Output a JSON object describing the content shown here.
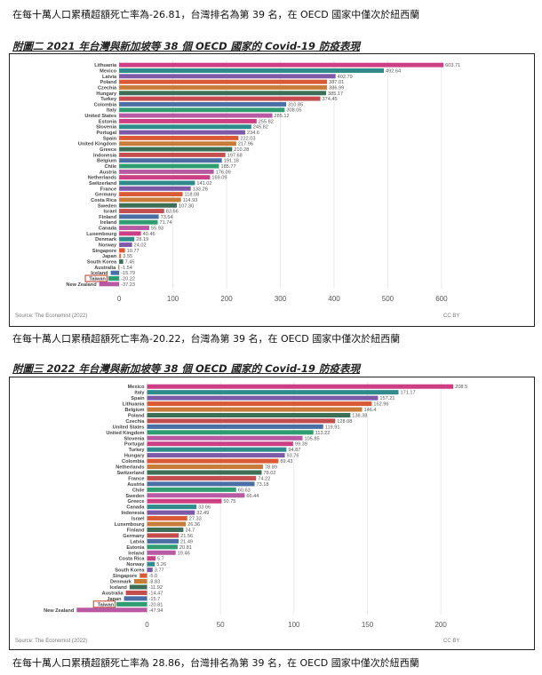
{
  "text": {
    "top_line": "在每十萬人口累積超額死亡率為-26.81，台灣排名為第 39 名，在 OECD 國家中僅次於紐西蘭",
    "caption1": "附圖二 2021 年台灣與新加坡等 38 個 OECD 國家的 Covid-19 防疫表現",
    "after1": "在每十萬人口累積超額死亡率為-20.22，台灣為第 39 名，在 OECD 國家中僅次於紐西蘭",
    "caption2": "附圖三 2022 年台灣與新加坡等 38 個 OECD 國家的 Covid-19 防疫表現",
    "after2": "在每十萬人口累積超額死亡率為 28.86，台灣排名為第 39 名，在 OECD 國家中僅次於紐西蘭"
  },
  "chart_data": [
    {
      "type": "bar",
      "orientation": "horizontal",
      "source": "Source: The Economist (2022)",
      "license": "CC BY",
      "xticks": [
        0,
        100,
        200,
        300,
        400,
        500,
        600
      ],
      "xlim": [
        -30,
        620
      ],
      "highlight": "Taiwan",
      "categories": [
        "Lithuania",
        "Mexico",
        "Latvia",
        "Poland",
        "Czechia",
        "Hungary",
        "Turkey",
        "Colombia",
        "Italy",
        "United States",
        "Estonia",
        "Slovenia",
        "Portugal",
        "Spain",
        "United Kingdom",
        "Greece",
        "Indonesia",
        "Belgium",
        "Chile",
        "Austria",
        "Netherlands",
        "Switzerland",
        "France",
        "Germany",
        "Costa Rica",
        "Sweden",
        "Israel",
        "Finland",
        "Ireland",
        "Canada",
        "Luxembourg",
        "Denmark",
        "Norway",
        "Singapore",
        "Japan",
        "South Korea",
        "Australia",
        "Iceland",
        "Taiwan",
        "New Zealand"
      ],
      "values": [
        603.71,
        492.64,
        402.79,
        387.01,
        386.99,
        385.17,
        374.45,
        310.85,
        308.05,
        285.12,
        255.82,
        245.82,
        234.6,
        222.03,
        217.96,
        210.28,
        197.68,
        191.18,
        185.77,
        176.09,
        169.09,
        141.02,
        133.26,
        118.08,
        114.93,
        107.3,
        83.66,
        73.54,
        71.74,
        55.93,
        40.46,
        28.19,
        24.02,
        10.77,
        3.55,
        7.45,
        -1.54,
        -15.79,
        -20.22,
        -37.23
      ],
      "value_labels": [
        "603.71",
        "492.64",
        "402.79",
        "387.01",
        "386.99",
        "385.17",
        "374.45",
        "310.85",
        "308.05",
        "285.12",
        "255.82",
        "245.82",
        "234.6",
        "222.03",
        "217.96",
        "210.28",
        "197.68",
        "191.18",
        "185.77",
        "176.09",
        "169.09",
        "141.02",
        "133.26",
        "118.08",
        "114.93",
        "107.30",
        "83.66",
        "73.54",
        "71.74",
        "55.93",
        "40.46",
        "28.19",
        "24.02",
        "10.77",
        "3.55",
        "7.45",
        "-1.54",
        "-15.79",
        "-20.22",
        "-37.23"
      ]
    },
    {
      "type": "bar",
      "orientation": "horizontal",
      "source": "Source: The Economist (2022)",
      "license": "CC BY",
      "xticks": [
        0,
        50,
        100,
        150,
        200
      ],
      "xlim": [
        -10,
        212
      ],
      "highlight": "Taiwan",
      "categories": [
        "Mexico",
        "Italy",
        "Spain",
        "Lithuania",
        "Belgium",
        "Poland",
        "Czechia",
        "United States",
        "United Kingdom",
        "Slovenia",
        "Portugal",
        "Turkey",
        "Hungary",
        "Colombia",
        "Netherlands",
        "Switzerland",
        "France",
        "Austria",
        "Chile",
        "Sweden",
        "Greece",
        "Canada",
        "Indonesia",
        "Israel",
        "Luxembourg",
        "Finland",
        "Germany",
        "Latvia",
        "Estonia",
        "Ireland",
        "Costa Rica",
        "Norway",
        "South Korea",
        "Singapore",
        "Denmark",
        "Iceland",
        "Australia",
        "Japan",
        "Taiwan",
        "New Zealand"
      ],
      "values": [
        208.5,
        171.17,
        157.21,
        152.96,
        146.4,
        138.38,
        128.08,
        119.91,
        113.22,
        105.85,
        99.39,
        94.87,
        93.76,
        89.43,
        78.89,
        78.02,
        74.22,
        73.18,
        60.63,
        66.44,
        50.75,
        33.66,
        32.49,
        27.33,
        26.36,
        24.7,
        21.56,
        21.49,
        20.81,
        19.46,
        5.7,
        5.26,
        3.77,
        -5.0,
        -8.83,
        -11.92,
        -14.47,
        -15.7,
        -20.81,
        -47.94
      ],
      "value_labels": [
        "208.5",
        "171.17",
        "157.21",
        "152.96",
        "146.4",
        "138.38",
        "128.08",
        "119.91",
        "113.22",
        "105.85",
        "99.39",
        "94.87",
        "93.76",
        "89.43",
        "78.89",
        "78.02",
        "74.22",
        "73.18",
        "60.63",
        "66.44",
        "50.75",
        "33.66",
        "32.49",
        "27.33",
        "26.36",
        "24.7",
        "21.56",
        "21.49",
        "20.81",
        "19.46",
        "5.7",
        "5.26",
        "3.77",
        "-5.0",
        "-8.83",
        "-11.92",
        "-14.47",
        "-15.7",
        "-20.81",
        "-47.94"
      ]
    }
  ],
  "colors": {
    "palette": [
      "#cc3f84",
      "#2f8a8c",
      "#7c5aa8",
      "#d95a35",
      "#c97b3a",
      "#3d6f57",
      "#c44d4d",
      "#4a6fa5",
      "#2f9c72",
      "#b75aa3"
    ],
    "frame": "#222222",
    "highlight_box": "#c0392b"
  }
}
